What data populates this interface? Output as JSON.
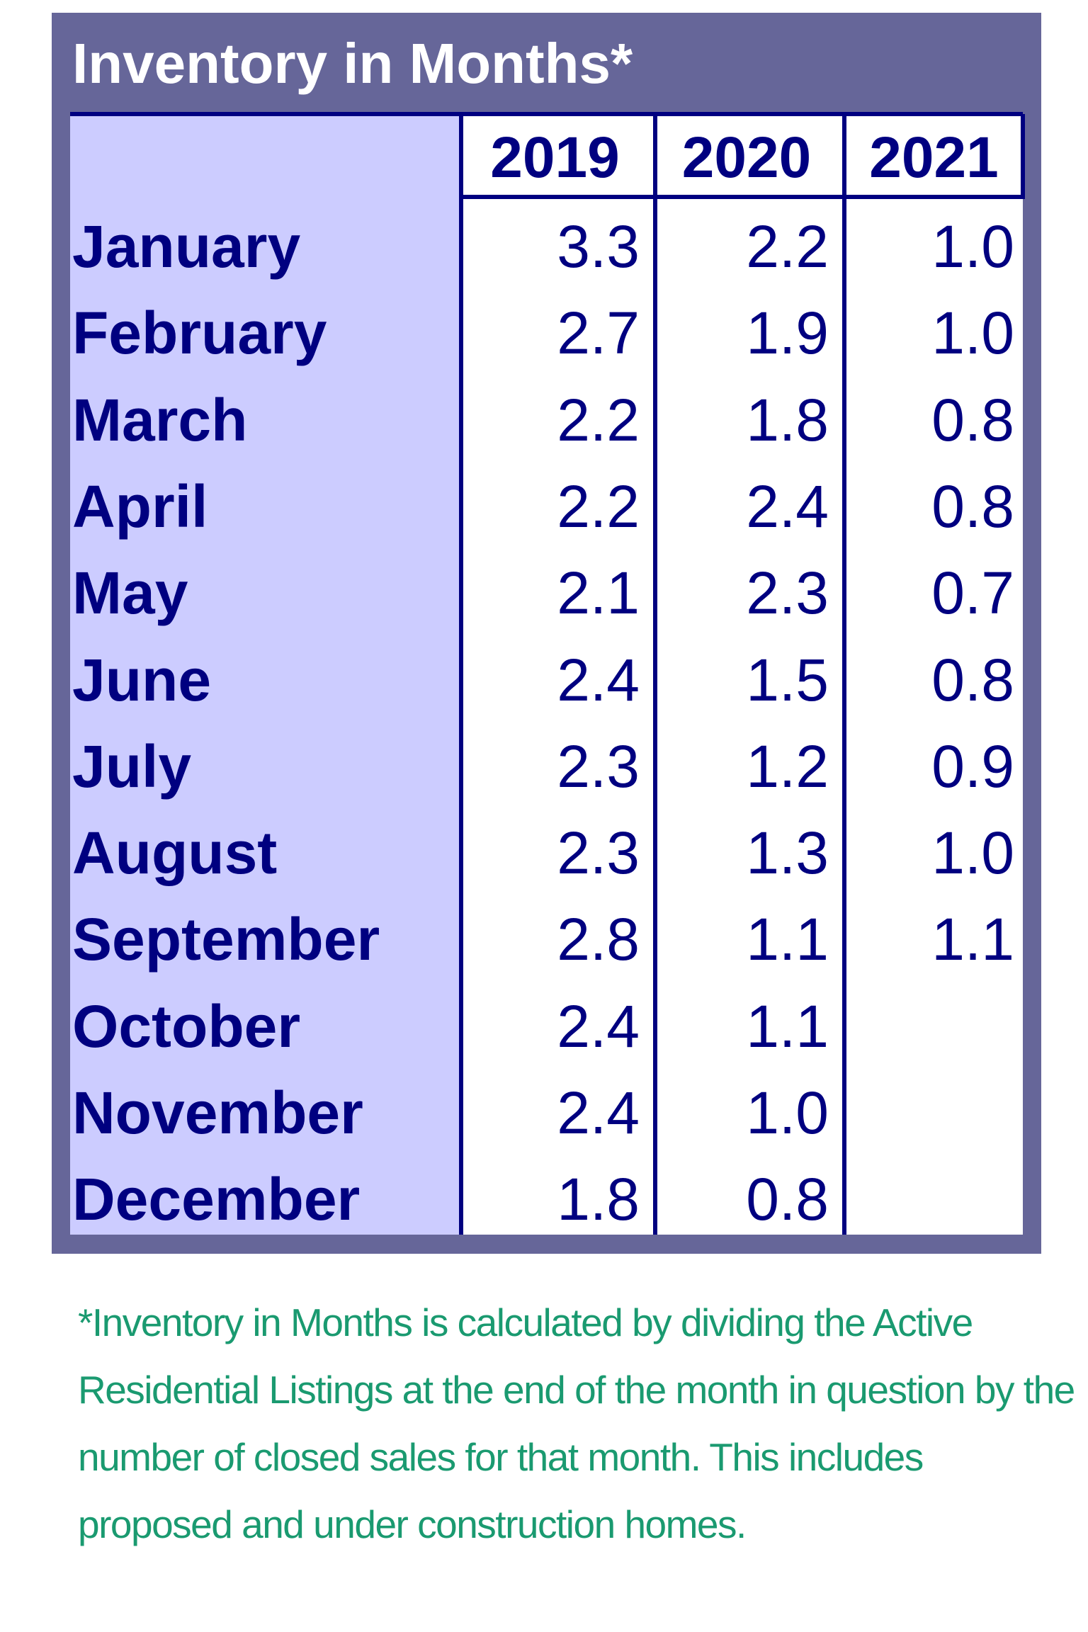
{
  "table": {
    "title": "Inventory in Months*",
    "columns": [
      "2019",
      "2020",
      "2021"
    ],
    "rows": [
      [
        "January",
        "3.3",
        "2.2",
        "1.0"
      ],
      [
        "February",
        "2.7",
        "1.9",
        "1.0"
      ],
      [
        "March",
        "2.2",
        "1.8",
        "0.8"
      ],
      [
        "April",
        "2.2",
        "2.4",
        "0.8"
      ],
      [
        "May",
        "2.1",
        "2.3",
        "0.7"
      ],
      [
        "June",
        "2.4",
        "1.5",
        "0.8"
      ],
      [
        "July",
        "2.3",
        "1.2",
        "0.9"
      ],
      [
        "August",
        "2.3",
        "1.3",
        "1.0"
      ],
      [
        "September",
        "2.8",
        "1.1",
        "1.1"
      ],
      [
        "October",
        "2.4",
        "1.1"
      ],
      [
        "November",
        "2.4",
        "1.0"
      ],
      [
        "December",
        "1.8",
        "0.8"
      ]
    ]
  },
  "footnote": "*Inventory in Months is calculated by dividing the Active Residential Listings at the end of the month in question by the number of closed sales for that month. This includes proposed and under construction homes."
}
